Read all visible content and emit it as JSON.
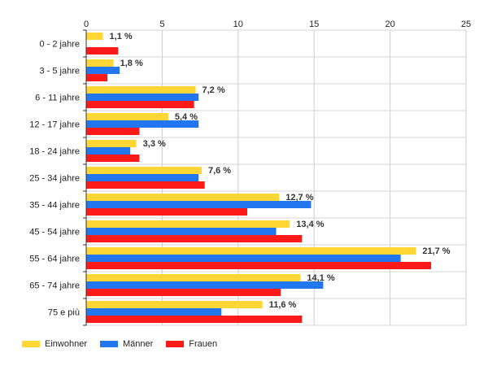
{
  "chart_data": {
    "type": "bar",
    "orientation": "horizontal",
    "categories": [
      "0 - 2 jahre",
      "3 - 5 jahre",
      "6 - 11 jahre",
      "12 - 17 jahre",
      "18 - 24 jahre",
      "25 - 34 jahre",
      "35 - 44 jahre",
      "45 - 54 jahre",
      "55 - 64 jahre",
      "65 - 74 jahre",
      "75 e più"
    ],
    "series": [
      {
        "name": "Einwohner",
        "color": "#FFD633",
        "values": [
          1.1,
          1.8,
          7.2,
          5.4,
          3.3,
          7.6,
          12.7,
          13.4,
          21.7,
          14.1,
          11.6
        ]
      },
      {
        "name": "Männer",
        "color": "#2277EE",
        "values": [
          0.0,
          2.2,
          7.4,
          7.4,
          2.9,
          7.4,
          14.8,
          12.5,
          20.7,
          15.6,
          8.9
        ]
      },
      {
        "name": "Frauen",
        "color": "#FF1A1A",
        "values": [
          2.1,
          1.4,
          7.1,
          3.5,
          3.5,
          7.8,
          10.6,
          14.2,
          22.7,
          12.8,
          14.2
        ]
      }
    ],
    "data_labels": [
      "1,1 %",
      "1,8 %",
      "7,2 %",
      "5,4 %",
      "3,3 %",
      "7,6 %",
      "12,7 %",
      "13,4 %",
      "21,7 %",
      "14,1 %",
      "11,6 %"
    ],
    "xticks": [
      "0",
      "5",
      "10",
      "15",
      "20",
      "25"
    ],
    "xlim": [
      0,
      25
    ],
    "grid": true,
    "legend_position": "bottom-left",
    "title": "",
    "xlabel": "",
    "ylabel": ""
  }
}
